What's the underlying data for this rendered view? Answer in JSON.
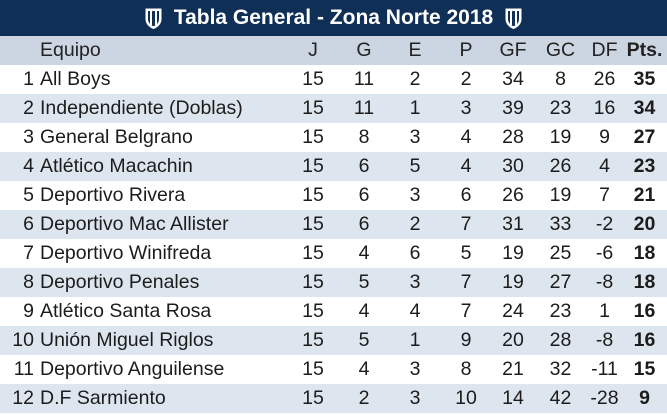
{
  "title": "Tabla General - Zona Norte 2018",
  "columns": {
    "pos": "",
    "team": "Equipo",
    "played": "J",
    "won": "G",
    "drawn": "E",
    "lost": "P",
    "gf": "GF",
    "gc": "GC",
    "df": "DF",
    "pts": "Pts."
  },
  "rows": [
    {
      "pos": "1",
      "team": "All Boys",
      "played": "15",
      "won": "11",
      "drawn": "2",
      "lost": "2",
      "gf": "34",
      "gc": "8",
      "df": "26",
      "pts": "35"
    },
    {
      "pos": "2",
      "team": "Independiente (Doblas)",
      "played": "15",
      "won": "11",
      "drawn": "1",
      "lost": "3",
      "gf": "39",
      "gc": "23",
      "df": "16",
      "pts": "34"
    },
    {
      "pos": "3",
      "team": "General Belgrano",
      "played": "15",
      "won": "8",
      "drawn": "3",
      "lost": "4",
      "gf": "28",
      "gc": "19",
      "df": "9",
      "pts": "27"
    },
    {
      "pos": "4",
      "team": "Atlético Macachin",
      "played": "15",
      "won": "6",
      "drawn": "5",
      "lost": "4",
      "gf": "30",
      "gc": "26",
      "df": "4",
      "pts": "23"
    },
    {
      "pos": "5",
      "team": "Deportivo Rivera",
      "played": "15",
      "won": "6",
      "drawn": "3",
      "lost": "6",
      "gf": "26",
      "gc": "19",
      "df": "7",
      "pts": "21"
    },
    {
      "pos": "6",
      "team": "Deportivo Mac Allister",
      "played": "15",
      "won": "6",
      "drawn": "2",
      "lost": "7",
      "gf": "31",
      "gc": "33",
      "df": "-2",
      "pts": "20"
    },
    {
      "pos": "7",
      "team": "Deportivo Winifreda",
      "played": "15",
      "won": "4",
      "drawn": "6",
      "lost": "5",
      "gf": "19",
      "gc": "25",
      "df": "-6",
      "pts": "18"
    },
    {
      "pos": "8",
      "team": "Deportivo Penales",
      "played": "15",
      "won": "5",
      "drawn": "3",
      "lost": "7",
      "gf": "19",
      "gc": "27",
      "df": "-8",
      "pts": "18"
    },
    {
      "pos": "9",
      "team": "Atlético Santa Rosa",
      "played": "15",
      "won": "4",
      "drawn": "4",
      "lost": "7",
      "gf": "24",
      "gc": "23",
      "df": "1",
      "pts": "16"
    },
    {
      "pos": "10",
      "team": "Unión Miguel Riglos",
      "played": "15",
      "won": "5",
      "drawn": "1",
      "lost": "9",
      "gf": "20",
      "gc": "28",
      "df": "-8",
      "pts": "16"
    },
    {
      "pos": "11",
      "team": "Deportivo Anguilense",
      "played": "15",
      "won": "4",
      "drawn": "3",
      "lost": "8",
      "gf": "21",
      "gc": "32",
      "df": "-11",
      "pts": "15"
    },
    {
      "pos": "12",
      "team": "D.F Sarmiento",
      "played": "15",
      "won": "2",
      "drawn": "3",
      "lost": "10",
      "gf": "14",
      "gc": "42",
      "df": "-28",
      "pts": "9"
    }
  ]
}
